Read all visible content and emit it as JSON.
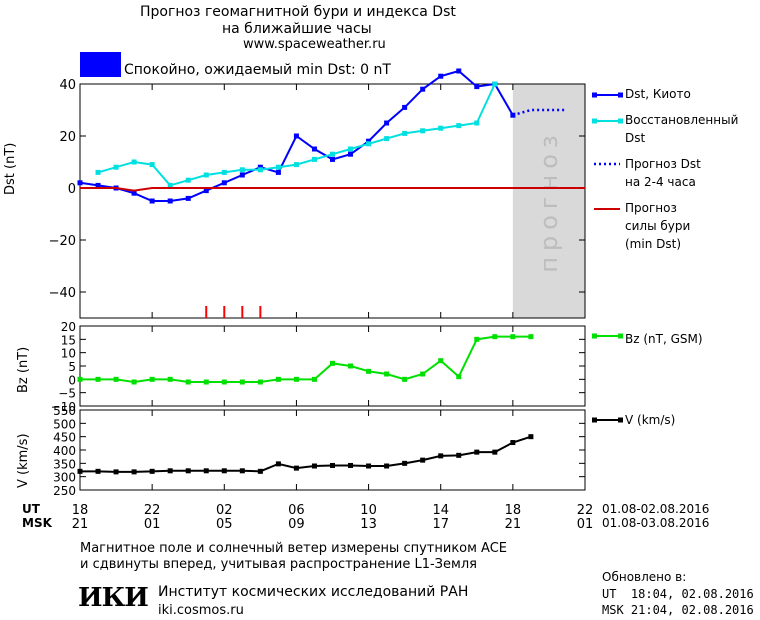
{
  "header": {
    "title_line1": "Прогноз геомагнитной бури и индекса Dst",
    "title_line2": "на ближайшие часы",
    "site": "www.spaceweather.ru",
    "status_text": "Спокойно, ожидаемый min Dst: 0 nT",
    "status_color": "#0000ff"
  },
  "chart_data": [
    {
      "type": "line",
      "ylabel": "Dst (nT)",
      "ylim": [
        -50,
        40
      ],
      "yticks": [
        40,
        20,
        0,
        -20,
        -40
      ],
      "forecast_label": "прогноз",
      "forecast_start_x": 24,
      "x_range": [
        0,
        28
      ],
      "series": [
        {
          "name": "Dst, Киото",
          "color": "#0000ff",
          "style": "solid-square",
          "x": [
            0,
            1,
            2,
            3,
            4,
            5,
            6,
            7,
            8,
            9,
            10,
            11,
            12,
            13,
            14,
            15,
            16,
            17,
            18,
            19,
            20,
            21,
            22,
            23,
            24
          ],
          "values": [
            2,
            1,
            0,
            -2,
            -5,
            -5,
            -4,
            -1,
            2,
            5,
            8,
            6,
            20,
            15,
            11,
            13,
            18,
            25,
            31,
            38,
            43,
            45,
            39,
            40,
            28
          ]
        },
        {
          "name": "Восстановленный Dst",
          "color": "#00e0e0",
          "style": "solid-square",
          "x": [
            1,
            2,
            3,
            4,
            5,
            6,
            7,
            8,
            9,
            10,
            11,
            12,
            13,
            14,
            15,
            16,
            17,
            18,
            19,
            20,
            21,
            22,
            23
          ],
          "values": [
            6,
            8,
            10,
            9,
            1,
            3,
            5,
            6,
            7,
            7,
            8,
            9,
            11,
            13,
            15,
            17,
            19,
            21,
            22,
            23,
            24,
            25,
            40
          ]
        },
        {
          "name": "Прогноз Dst на 2-4 часа",
          "color": "#0000ff",
          "style": "dotted",
          "x": [
            24,
            25,
            26,
            27
          ],
          "values": [
            28,
            30,
            30,
            30
          ]
        },
        {
          "name": "Прогноз силы бури (min Dst)",
          "color": "#cc0000",
          "style": "solid",
          "x": [
            0,
            2,
            3,
            4,
            28
          ],
          "values": [
            0,
            0,
            -1,
            0,
            0
          ]
        }
      ],
      "marker_ticks_x": [
        7,
        8,
        9,
        10
      ]
    },
    {
      "type": "line",
      "ylabel": "Bz (nT)",
      "ylim": [
        -10,
        20
      ],
      "yticks": [
        20,
        15,
        10,
        5,
        0,
        -5,
        -10
      ],
      "ytick_labels": [
        "20",
        "15",
        "10",
        "5",
        "0",
        "-5",
        "-10"
      ],
      "series": [
        {
          "name": "Bz (nT, GSM)",
          "color": "#00e000",
          "x": [
            0,
            1,
            2,
            3,
            4,
            5,
            6,
            7,
            8,
            9,
            10,
            11,
            12,
            13,
            14,
            15,
            16,
            17,
            18,
            19,
            20,
            21,
            22,
            23,
            24,
            25
          ],
          "values": [
            0,
            0,
            0,
            -1,
            0,
            0,
            -1,
            -1,
            -1,
            -1,
            -1,
            0,
            0,
            0,
            6,
            5,
            3,
            2,
            0,
            2,
            7,
            1,
            15,
            16,
            16,
            16
          ]
        }
      ]
    },
    {
      "type": "line",
      "ylabel": "V (km/s)",
      "ylim": [
        250,
        550
      ],
      "yticks": [
        550,
        500,
        450,
        400,
        350,
        300,
        250
      ],
      "series": [
        {
          "name": "V (km/s)",
          "color": "#000000",
          "x": [
            0,
            1,
            2,
            3,
            4,
            5,
            6,
            7,
            8,
            9,
            10,
            11,
            12,
            13,
            14,
            15,
            16,
            17,
            18,
            19,
            20,
            21,
            22,
            23,
            24,
            25
          ],
          "values": [
            320,
            320,
            318,
            318,
            320,
            322,
            322,
            322,
            322,
            322,
            320,
            348,
            332,
            340,
            342,
            342,
            340,
            340,
            350,
            362,
            378,
            380,
            392,
            392,
            428,
            450
          ]
        }
      ]
    }
  ],
  "x_axis": {
    "ut_label": "UT",
    "msk_label": "MSK",
    "ticks_x": [
      0,
      4,
      8,
      12,
      16,
      20,
      24,
      28
    ],
    "ut_ticks": [
      "18",
      "22",
      "02",
      "06",
      "10",
      "14",
      "18",
      "22"
    ],
    "msk_ticks": [
      "21",
      "01",
      "05",
      "09",
      "13",
      "17",
      "21",
      "01"
    ],
    "ut_range": "01.08-02.08.2016",
    "msk_range": "01.08-03.08.2016"
  },
  "footer": {
    "note_line1": "Магнитное поле и солнечный ветер измерены спутником ACE",
    "note_line2": "и сдвинуты вперед, учитывая распространение L1-Земля",
    "logo": "ИКИ",
    "institute": "Институт космических исследований РАН",
    "institute_site": "iki.cosmos.ru",
    "updated_label": "Обновлено в:",
    "updated_ut": "UT  18:04, 02.08.2016",
    "updated_msk": "MSK 21:04, 02.08.2016"
  },
  "legend": {
    "dst_kyoto": "Dst, Киото",
    "restored_1": "Восстановленный",
    "restored_2": "Dst",
    "forecast_1": "Прогноз Dst",
    "forecast_2": "на 2-4 часа",
    "storm_1": "Прогноз",
    "storm_2": "силы бури",
    "storm_3": "(min Dst)",
    "bz": "Bz (nT, GSM)",
    "v": "V (km/s)"
  }
}
